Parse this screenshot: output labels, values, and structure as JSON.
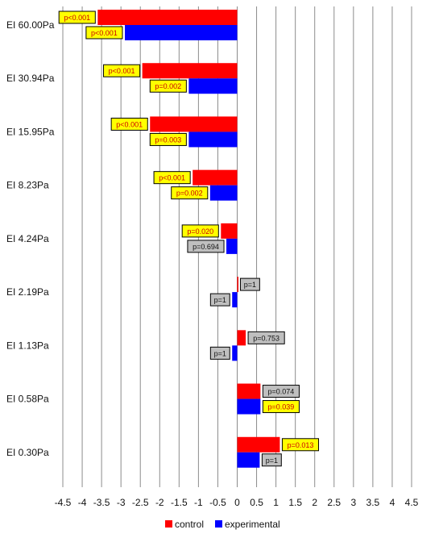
{
  "chart_data": {
    "type": "bar",
    "orientation": "horizontal",
    "categories": [
      "EI 60.00Pa",
      "EI 30.94Pa",
      "EI 15.95Pa",
      "EI 8.23Pa",
      "EI 4.24Pa",
      "EI 2.19Pa",
      "EI 1.13Pa",
      "EI 0.58Pa",
      "EI 0.30Pa"
    ],
    "series": [
      {
        "name": "control",
        "color": "#ff0000",
        "values": [
          -3.6,
          -2.45,
          -2.25,
          -1.15,
          -0.42,
          0.02,
          0.22,
          0.6,
          1.1
        ],
        "p_labels": [
          "p<0.001",
          "p<0.001",
          "p<0.001",
          "p<0.001",
          "p=0.020",
          "p=1",
          "p=0.753",
          "p=0.074",
          "p=0.013"
        ],
        "p_significant": [
          true,
          true,
          true,
          true,
          true,
          false,
          false,
          false,
          true
        ]
      },
      {
        "name": "experimental",
        "color": "#0000ff",
        "values": [
          -2.9,
          -1.25,
          -1.25,
          -0.7,
          -0.28,
          -0.13,
          -0.13,
          0.6,
          0.58
        ],
        "p_labels": [
          "p<0.001",
          "p=0.002",
          "p=0.003",
          "p=0.002",
          "p=0.694",
          "p=1",
          "p=1",
          "p=0.039",
          "p=1"
        ],
        "p_significant": [
          true,
          true,
          true,
          true,
          false,
          false,
          false,
          true,
          false
        ]
      }
    ],
    "xlim": [
      -4.5,
      4.5
    ],
    "xticks": [
      "-4.5",
      "-4",
      "-3.5",
      "-3",
      "-2.5",
      "-2",
      "-1.5",
      "-1",
      "-0.5",
      "0",
      "0.5",
      "1",
      "1.5",
      "2",
      "2.5",
      "3",
      "3.5",
      "4",
      "4.5"
    ],
    "grid": "vertical",
    "legend_position": "bottom",
    "label_colors": {
      "significant_fill": "#ffff00",
      "significant_text": "#cc0000",
      "nonsignificant_fill": "#bfbfbf",
      "nonsignificant_text": "#111111"
    }
  }
}
